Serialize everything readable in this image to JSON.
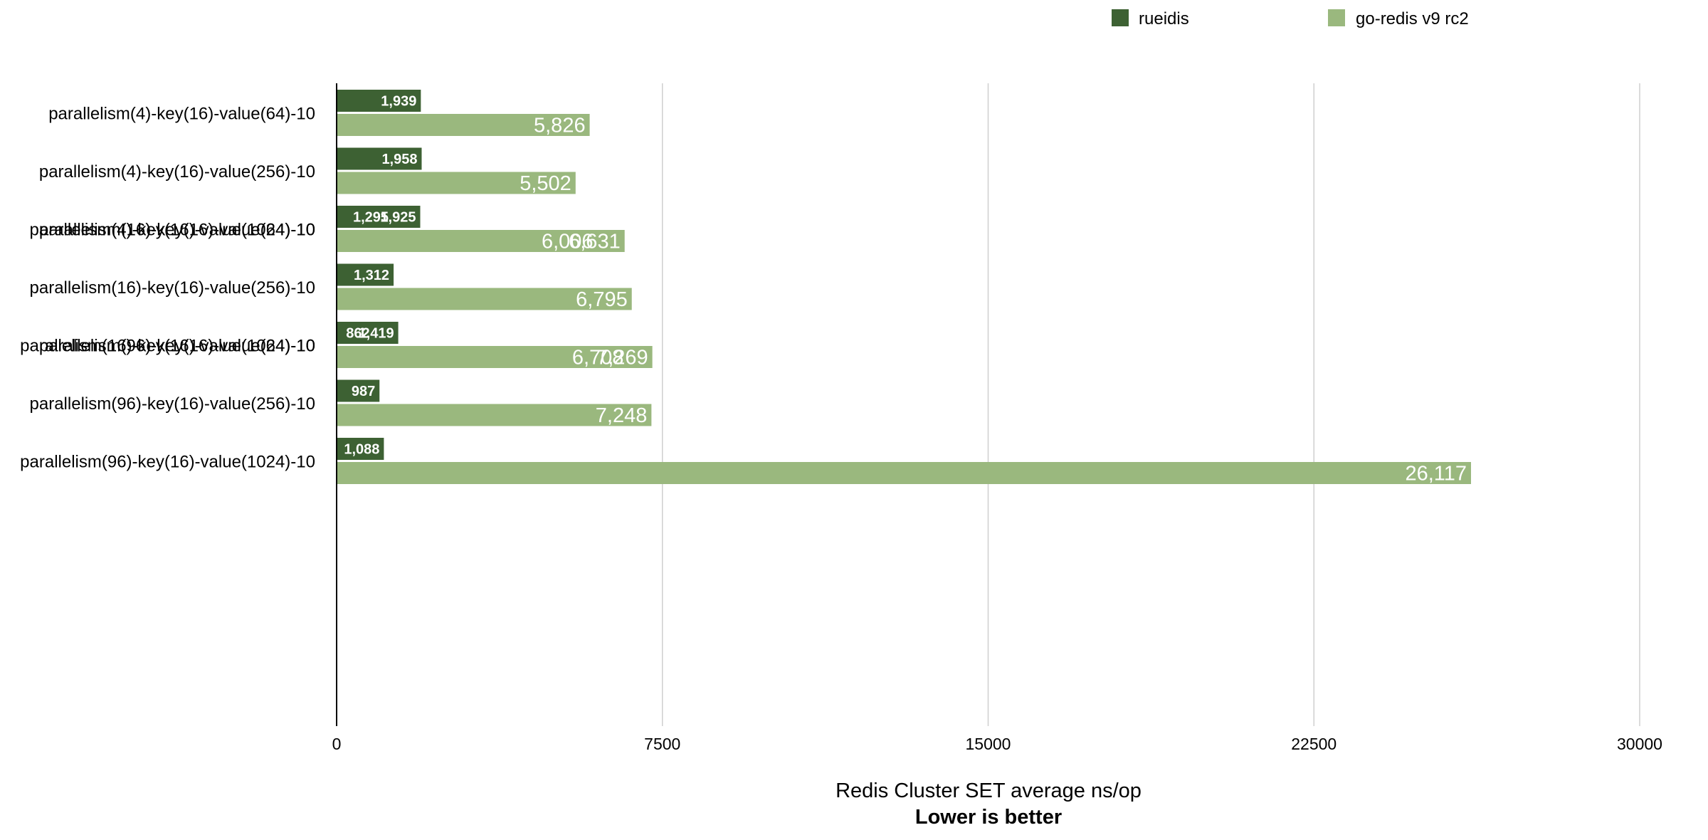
{
  "chart_data": {
    "type": "bar",
    "orientation": "horizontal",
    "categories": [
      "parallelism(4)-key(16)-value(64)-10",
      "parallelism(4)-key(16)-value(256)-10",
      "parallelism(4)-key(16)-value(1024)-10",
      "parallelism(16)-key(16)-value(64)-10",
      "parallelism(16)-key(16)-value(256)-10",
      "parallelism(16)-key(16)-value(1024)-10",
      "parallelism(96)-key(16)-value(64)-10",
      "parallelism(96)-key(16)-value(256)-10",
      "parallelism(96)-key(16)-value(1024)-10"
    ],
    "series": [
      {
        "name": "rueidis",
        "color": "#3d6133",
        "values": [
          1939,
          1958,
          1925,
          1295,
          1312,
          1419,
          862,
          987,
          1088
        ],
        "labels": [
          "1,939",
          "1,958",
          "1,925",
          "1,295",
          "1,312",
          "1,419",
          "862",
          "987",
          "1,088"
        ]
      },
      {
        "name": "go-redis v9 rc2",
        "color": "#9ab87e",
        "values": [
          5826,
          5502,
          6006,
          6631,
          6795,
          6708,
          7269,
          7248,
          26117
        ],
        "labels": [
          "5,826",
          "5,502",
          "6,006",
          "6,631",
          "6,795",
          "6,708",
          "7,269",
          "7,248",
          "26,117"
        ]
      }
    ],
    "xlabel": "Redis Cluster SET average ns/op",
    "xsublabel": "Lower is better",
    "xlim": [
      0,
      30000
    ],
    "xticks": [
      "0",
      "7500",
      "15000",
      "22500",
      "30000"
    ],
    "grid": true,
    "legend_position": "top-right"
  }
}
